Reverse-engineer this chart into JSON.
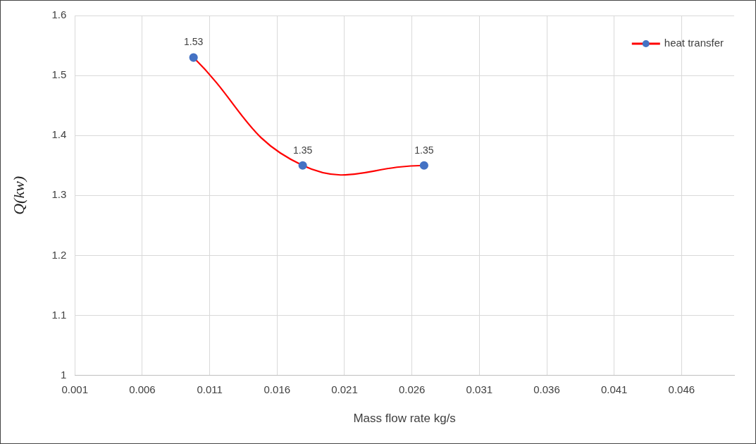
{
  "chart_data": {
    "type": "line",
    "xlabel": "Mass flow rate kg/s",
    "ylabel": "Q(kw)",
    "x": [
      0.0098,
      0.0179,
      0.0269
    ],
    "series": [
      {
        "name": "heat transfer",
        "color": "#ff0000",
        "colors": [
          "#4472c4",
          "#4472c4",
          "#4472c4"
        ],
        "values": [
          1.53,
          1.35,
          1.35
        ]
      }
    ],
    "xlim": [
      0.001,
      0.0499
    ],
    "xticks": [
      {
        "value": 0.001,
        "label": "0.001"
      },
      {
        "value": 0.006,
        "label": "0.006"
      },
      {
        "value": 0.011,
        "label": "0.011"
      },
      {
        "value": 0.016,
        "label": "0.016"
      },
      {
        "value": 0.021,
        "label": "0.021"
      },
      {
        "value": 0.026,
        "label": "0.026"
      },
      {
        "value": 0.031,
        "label": "0.031"
      },
      {
        "value": 0.036,
        "label": "0.036"
      },
      {
        "value": 0.041,
        "label": "0.041"
      },
      {
        "value": 0.046,
        "label": "0.046"
      }
    ],
    "ylim": [
      1,
      1.6
    ],
    "yticks": [
      {
        "value": 1,
        "label": "1"
      },
      {
        "value": 1.1,
        "label": "1.1"
      },
      {
        "value": 1.2,
        "label": "1.2"
      },
      {
        "value": 1.3,
        "label": "1.3"
      },
      {
        "value": 1.4,
        "label": "1.4"
      },
      {
        "value": 1.5,
        "label": "1.5"
      },
      {
        "value": 1.6,
        "label": "1.6"
      }
    ],
    "grid": true,
    "legend": "top right",
    "marker": "circle",
    "line_style": "solid",
    "data_labels": true
  }
}
